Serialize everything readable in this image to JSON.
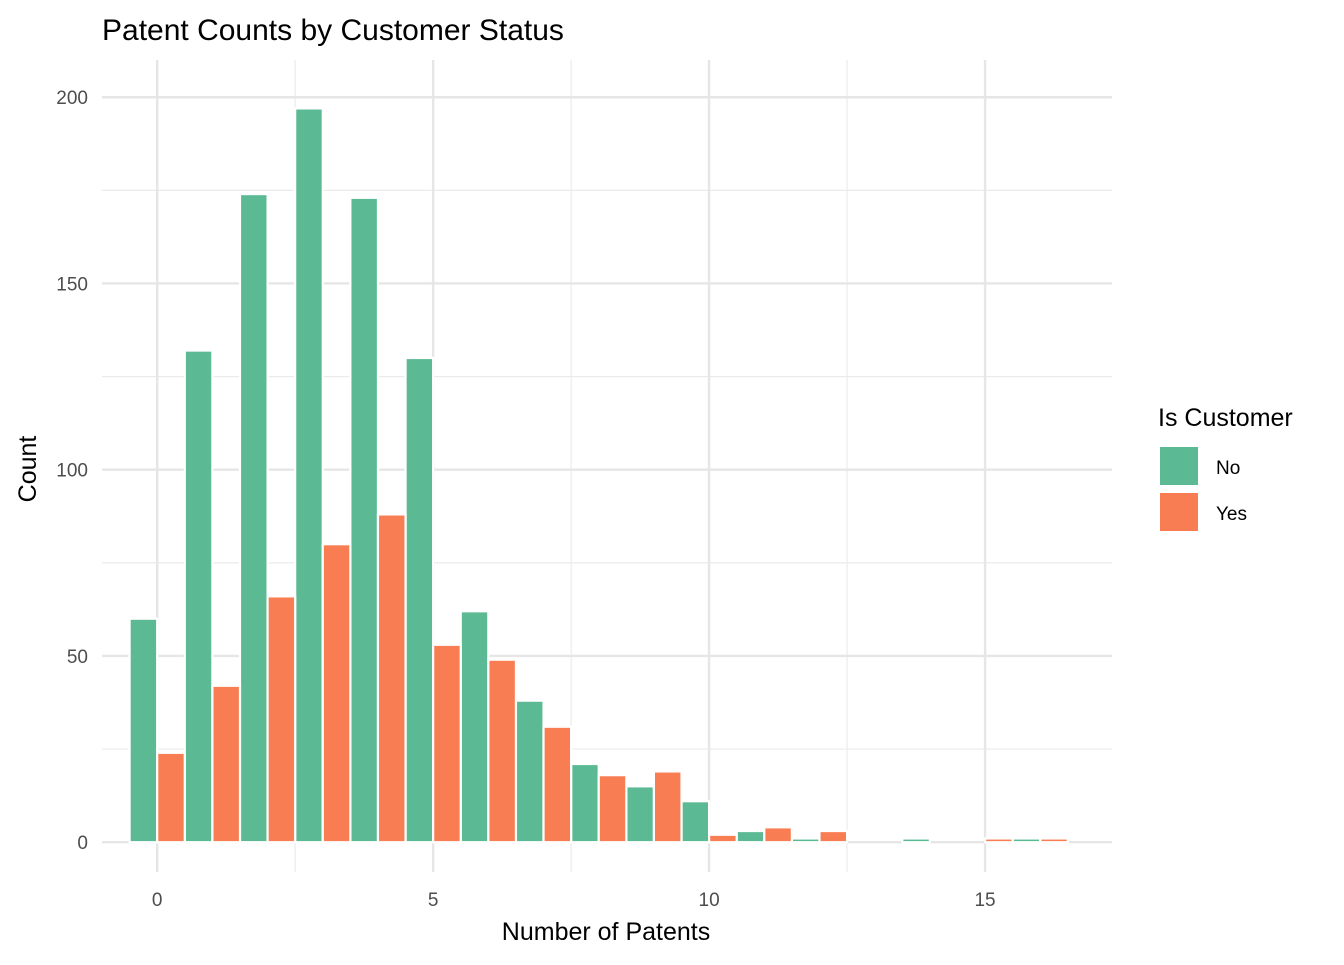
{
  "chart_data": {
    "type": "bar",
    "title": "Patent Counts by Customer Status",
    "xlabel": "Number of Patents",
    "ylabel": "Count",
    "xlim": [
      -1,
      17.3
    ],
    "ylim": [
      -8,
      210
    ],
    "x_ticks": [
      0,
      5,
      10,
      15
    ],
    "x_tick_labels": [
      "0",
      "5",
      "10",
      "15"
    ],
    "y_ticks": [
      0,
      50,
      100,
      150,
      200
    ],
    "y_tick_labels": [
      "0",
      "50",
      "100",
      "150",
      "200"
    ],
    "grid": true,
    "legend": {
      "title": "Is Customer",
      "position": "right"
    },
    "x": [
      0,
      1,
      2,
      3,
      4,
      5,
      6,
      7,
      8,
      9,
      10,
      11,
      12,
      13,
      14,
      15,
      16
    ],
    "series": [
      {
        "name": "No",
        "color": "#5bba94",
        "values": [
          60,
          132,
          174,
          197,
          173,
          130,
          62,
          38,
          21,
          15,
          11,
          3,
          1,
          0,
          1,
          0,
          1
        ]
      },
      {
        "name": "Yes",
        "color": "#f87d53",
        "values": [
          24,
          42,
          66,
          80,
          88,
          53,
          49,
          31,
          18,
          19,
          2,
          4,
          3,
          0,
          0,
          1,
          1
        ]
      }
    ]
  }
}
